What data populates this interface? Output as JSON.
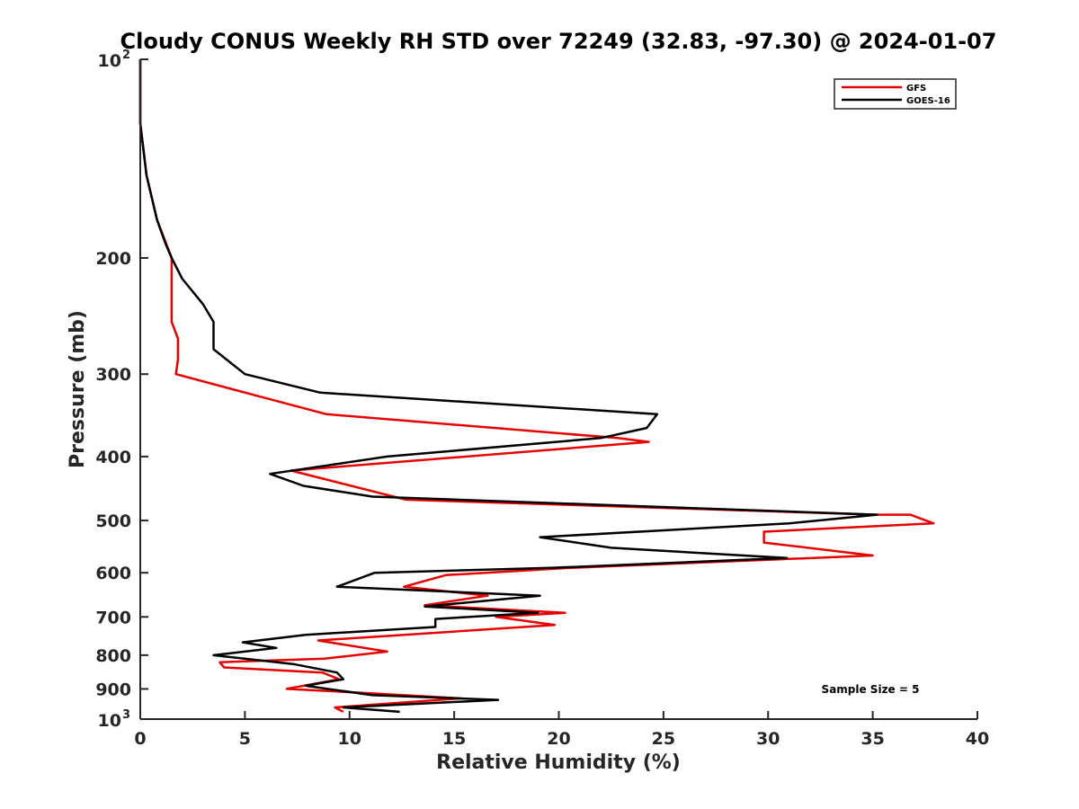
{
  "chart_data": {
    "type": "line",
    "title": "Cloudy CONUS Weekly RH STD over 72249 (32.83, -97.30) @ 2024-01-07",
    "xlabel": "Relative Humidity (%)",
    "ylabel": "Pressure (mb)",
    "xlim": [
      0,
      40
    ],
    "ylim": [
      100,
      1000
    ],
    "y_scale": "log",
    "y_reversed": true,
    "x_ticks": [
      0,
      5,
      10,
      15,
      20,
      25,
      30,
      35,
      40
    ],
    "x_tick_labels": [
      "0",
      "5",
      "10",
      "15",
      "20",
      "25",
      "30",
      "35",
      "40"
    ],
    "y_ticks": [
      {
        "value": 100,
        "base": "10",
        "exp": "2"
      },
      {
        "value": 200,
        "label": "200"
      },
      {
        "value": 300,
        "label": "300"
      },
      {
        "value": 400,
        "label": "400"
      },
      {
        "value": 500,
        "label": "500"
      },
      {
        "value": 600,
        "label": "600"
      },
      {
        "value": 700,
        "label": "700"
      },
      {
        "value": 800,
        "label": "800"
      },
      {
        "value": 900,
        "label": "900"
      },
      {
        "value": 1000,
        "base": "10",
        "exp": "3"
      }
    ],
    "legend_position": "top-right",
    "annotation": "Sample Size = 5",
    "series": [
      {
        "name": "GFS",
        "color": "#e60000",
        "points": [
          [
            0,
            100
          ],
          [
            0,
            125
          ],
          [
            0.3,
            150
          ],
          [
            0.8,
            175
          ],
          [
            1.5,
            200
          ],
          [
            1.5,
            225
          ],
          [
            1.5,
            250
          ],
          [
            1.8,
            265
          ],
          [
            1.8,
            285
          ],
          [
            1.7,
            300
          ],
          [
            5.8,
            325
          ],
          [
            8.9,
            345
          ],
          [
            22.8,
            375
          ],
          [
            24.3,
            380
          ],
          [
            7.2,
            420
          ],
          [
            12.7,
            465
          ],
          [
            35.2,
            490
          ],
          [
            36.8,
            490
          ],
          [
            37.9,
            505
          ],
          [
            29.8,
            520
          ],
          [
            29.8,
            540
          ],
          [
            35.0,
            565
          ],
          [
            20.5,
            590
          ],
          [
            14.6,
            605
          ],
          [
            12.6,
            630
          ],
          [
            16.6,
            650
          ],
          [
            13.6,
            672
          ],
          [
            20.3,
            690
          ],
          [
            17.0,
            700
          ],
          [
            19.8,
            720
          ],
          [
            8.5,
            760
          ],
          [
            11.8,
            790
          ],
          [
            8.8,
            810
          ],
          [
            3.8,
            820
          ],
          [
            4.0,
            835
          ],
          [
            8.7,
            850
          ],
          [
            9.5,
            870
          ],
          [
            7.0,
            900
          ],
          [
            10.5,
            912
          ],
          [
            15.3,
            930
          ],
          [
            9.3,
            960
          ],
          [
            9.7,
            975
          ]
        ]
      },
      {
        "name": "GOES-16",
        "color": "#000000",
        "points": [
          [
            0,
            100
          ],
          [
            0,
            125
          ],
          [
            0.3,
            150
          ],
          [
            0.8,
            175
          ],
          [
            1.2,
            190
          ],
          [
            1.5,
            200
          ],
          [
            2.0,
            215
          ],
          [
            3.0,
            235
          ],
          [
            3.5,
            250
          ],
          [
            3.5,
            275
          ],
          [
            5.0,
            300
          ],
          [
            8.6,
            320
          ],
          [
            24.7,
            345
          ],
          [
            24.2,
            362
          ],
          [
            22.0,
            375
          ],
          [
            11.8,
            400
          ],
          [
            6.2,
            425
          ],
          [
            7.8,
            443
          ],
          [
            11.1,
            460
          ],
          [
            35.2,
            490
          ],
          [
            31.0,
            505
          ],
          [
            19.1,
            530
          ],
          [
            22.5,
            550
          ],
          [
            30.9,
            570
          ],
          [
            19.6,
            590
          ],
          [
            11.2,
            600
          ],
          [
            9.4,
            630
          ],
          [
            19.1,
            650
          ],
          [
            13.6,
            675
          ],
          [
            19.0,
            690
          ],
          [
            14.1,
            705
          ],
          [
            14.1,
            725
          ],
          [
            7.9,
            745
          ],
          [
            4.9,
            765
          ],
          [
            6.5,
            780
          ],
          [
            3.5,
            800
          ],
          [
            7.3,
            825
          ],
          [
            9.4,
            850
          ],
          [
            9.7,
            870
          ],
          [
            7.9,
            890
          ],
          [
            11.1,
            920
          ],
          [
            17.1,
            935
          ],
          [
            9.7,
            960
          ],
          [
            12.4,
            975
          ]
        ]
      }
    ]
  }
}
